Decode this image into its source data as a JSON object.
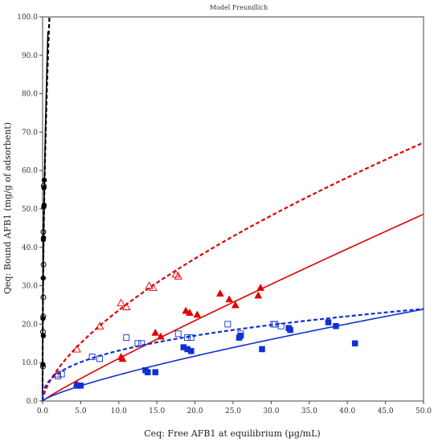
{
  "chart_data": {
    "type": "scatter",
    "title": "Model Freundlich",
    "xlabel": "Ceq: Free AFB1 at equilibrium (µg/mL)",
    "ylabel": "Qeq: Bound AFB1 (mg/g of adsorbent)",
    "xlim": [
      0,
      50
    ],
    "ylim": [
      0,
      100
    ],
    "x_ticks": [
      "0.0",
      "5.0",
      "10.0",
      "15.0",
      "20.0",
      "25.0",
      "30.0",
      "35.0",
      "40.0",
      "45.0",
      "50.0"
    ],
    "y_ticks": [
      "0.0",
      "10.0",
      "20.0",
      "30.0",
      "40.0",
      "50.0",
      "60.0",
      "70.0",
      "80.0",
      "90.0",
      "100.0"
    ],
    "grid": false,
    "legend": "none",
    "series": [
      {
        "marker": "filled-circle",
        "color": "#000000",
        "points": [
          [
            0.05,
            21.5
          ],
          [
            0.08,
            32
          ],
          [
            0.1,
            42
          ],
          [
            0.12,
            42.5
          ],
          [
            0.15,
            50.5
          ],
          [
            0.2,
            51
          ],
          [
            0.18,
            55.5
          ],
          [
            0.22,
            57.5
          ],
          [
            0.05,
            9.5
          ],
          [
            0.1,
            17
          ]
        ]
      },
      {
        "marker": "open-circle",
        "color": "#000000",
        "points": [
          [
            0.05,
            18
          ],
          [
            0.1,
            27
          ],
          [
            0.12,
            35.5
          ],
          [
            0.1,
            44
          ],
          [
            0.15,
            56
          ],
          [
            0.05,
            9
          ],
          [
            0.08,
            22
          ]
        ]
      },
      {
        "marker": "filled-triangle",
        "color": "#e00000",
        "points": [
          [
            4.5,
            4.5
          ],
          [
            10.3,
            11.5
          ],
          [
            10.5,
            11
          ],
          [
            14.8,
            17.8
          ],
          [
            15.5,
            16.8
          ],
          [
            18.8,
            23.5
          ],
          [
            19.3,
            23
          ],
          [
            20.3,
            22.5
          ],
          [
            23.3,
            28
          ],
          [
            24.5,
            26.5
          ],
          [
            25.3,
            25
          ],
          [
            28.3,
            27.5
          ],
          [
            28.6,
            29.5
          ]
        ]
      },
      {
        "marker": "open-triangle",
        "color": "#e00000",
        "points": [
          [
            2,
            7
          ],
          [
            4.5,
            13.5
          ],
          [
            7.5,
            19.5
          ],
          [
            10.3,
            25.5
          ],
          [
            11,
            24.5
          ],
          [
            14,
            30
          ],
          [
            14.5,
            29.5
          ],
          [
            17.5,
            33
          ],
          [
            17.8,
            32.5
          ]
        ]
      },
      {
        "marker": "filled-square",
        "color": "#1030d0",
        "points": [
          [
            4.5,
            4
          ],
          [
            5,
            4
          ],
          [
            13.5,
            8
          ],
          [
            13.8,
            7.5
          ],
          [
            14.8,
            7.5
          ],
          [
            18.5,
            14
          ],
          [
            19,
            13.5
          ],
          [
            19.5,
            13
          ],
          [
            25.8,
            16.5
          ],
          [
            26,
            17
          ],
          [
            28.8,
            13.5
          ],
          [
            32.3,
            19
          ],
          [
            32.5,
            18.5
          ],
          [
            37.5,
            20.5
          ],
          [
            38.5,
            19.5
          ],
          [
            41,
            15
          ]
        ]
      },
      {
        "marker": "open-square",
        "color": "#1030d0",
        "points": [
          [
            2,
            6.5
          ],
          [
            2.5,
            7
          ],
          [
            6.5,
            11.5
          ],
          [
            7.5,
            11
          ],
          [
            11,
            16.5
          ],
          [
            12.5,
            15
          ],
          [
            13,
            15
          ],
          [
            17.8,
            17.5
          ],
          [
            19,
            16.5
          ],
          [
            19.5,
            16.5
          ],
          [
            24.3,
            20
          ],
          [
            26,
            17.5
          ],
          [
            30.3,
            20
          ],
          [
            30.5,
            20
          ],
          [
            31.3,
            19.5
          ]
        ]
      }
    ],
    "fits": [
      {
        "style": "solid",
        "color": "#000000",
        "K": 115,
        "n": 0.5,
        "xmax": 0.7
      },
      {
        "style": "dashed",
        "color": "#000000",
        "K": 105,
        "n": 0.45,
        "xmax": 0.9
      },
      {
        "style": "solid",
        "color": "#e00000",
        "K": 1.33,
        "n": 0.92,
        "xmax": 50
      },
      {
        "style": "dashed",
        "color": "#e00000",
        "K": 5.29,
        "n": 0.65,
        "xmax": 50
      },
      {
        "style": "solid",
        "color": "#1030d0",
        "K": 1.13,
        "n": 0.78,
        "xmax": 50
      },
      {
        "style": "dashed",
        "color": "#1030d0",
        "K": 5.53,
        "n": 0.375,
        "xmax": 50
      }
    ]
  }
}
